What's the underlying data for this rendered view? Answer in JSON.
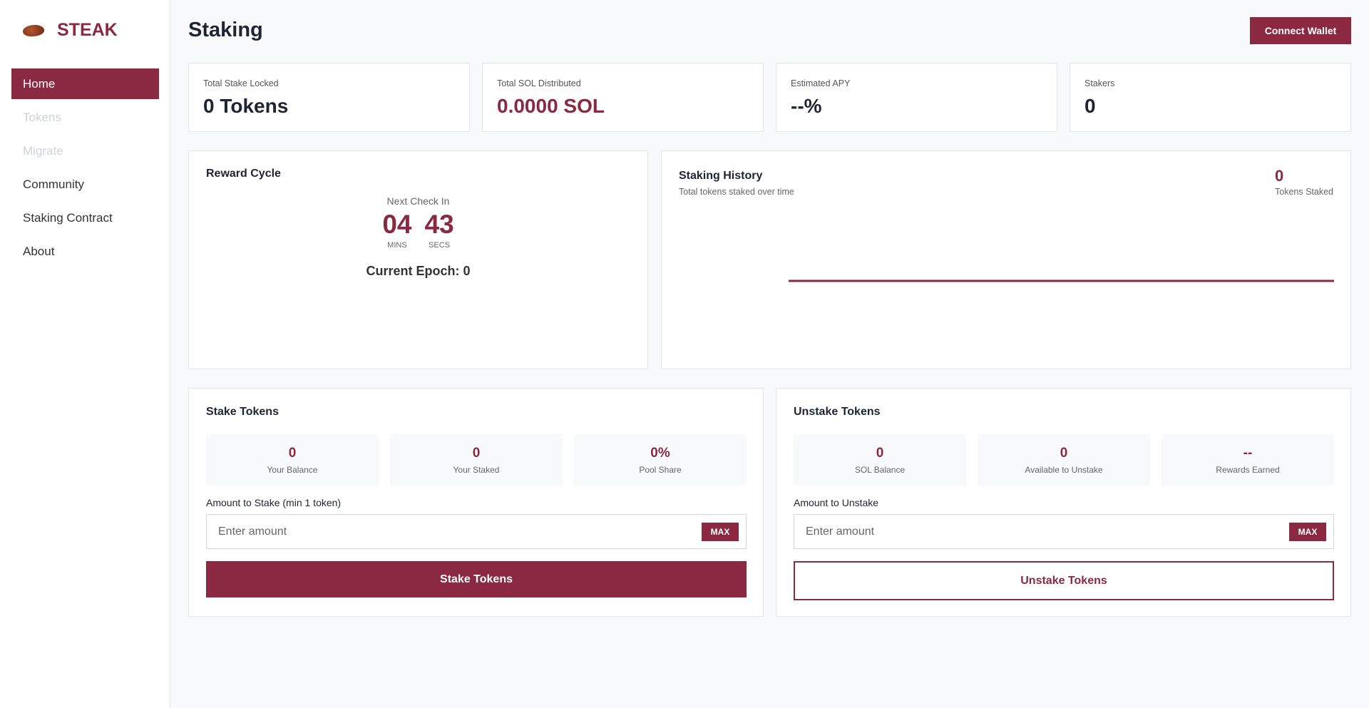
{
  "brand": {
    "name": "STEAK",
    "icon": "steak-icon",
    "accent": "#8b2842"
  },
  "sidebar": {
    "items": [
      {
        "label": "Home",
        "state": "active"
      },
      {
        "label": "Tokens",
        "state": "disabled"
      },
      {
        "label": "Migrate",
        "state": "disabled"
      },
      {
        "label": "Community",
        "state": "normal"
      },
      {
        "label": "Staking Contract",
        "state": "normal"
      },
      {
        "label": "About",
        "state": "normal"
      }
    ]
  },
  "header": {
    "title": "Staking",
    "connect_label": "Connect Wallet"
  },
  "stats": [
    {
      "label": "Total Stake Locked",
      "value": "0 Tokens"
    },
    {
      "label": "Total SOL Distributed",
      "value": "0.0000 SOL"
    },
    {
      "label": "Estimated APY",
      "value": "--%"
    },
    {
      "label": "Stakers",
      "value": "0"
    }
  ],
  "reward_cycle": {
    "title": "Reward Cycle",
    "next_label": "Next Check In",
    "mins": "04",
    "mins_label": "MINS",
    "secs": "43",
    "secs_label": "SECS",
    "epoch": "Current Epoch: 0"
  },
  "history": {
    "title": "Staking History",
    "subtitle": "Total tokens staked over time",
    "total": "0",
    "total_label": "Tokens Staked"
  },
  "chart_data": {
    "type": "line",
    "series": [
      {
        "values": [
          0,
          0
        ]
      }
    ]
  },
  "stake": {
    "title": "Stake Tokens",
    "stats": [
      {
        "value": "0",
        "label": "Your Balance"
      },
      {
        "value": "0",
        "label": "Your Staked"
      },
      {
        "value": "0%",
        "label": "Pool Share"
      }
    ],
    "field_label": "Amount to Stake (min 1 token)",
    "placeholder": "Enter amount",
    "max_label": "MAX",
    "button": "Stake Tokens"
  },
  "unstake": {
    "title": "Unstake Tokens",
    "stats": [
      {
        "value": "0",
        "label": "SOL Balance"
      },
      {
        "value": "0",
        "label": "Available to Unstake"
      },
      {
        "value": "--",
        "label": "Rewards Earned"
      }
    ],
    "field_label": "Amount to Unstake",
    "placeholder": "Enter amount",
    "max_label": "MAX",
    "button": "Unstake Tokens"
  }
}
